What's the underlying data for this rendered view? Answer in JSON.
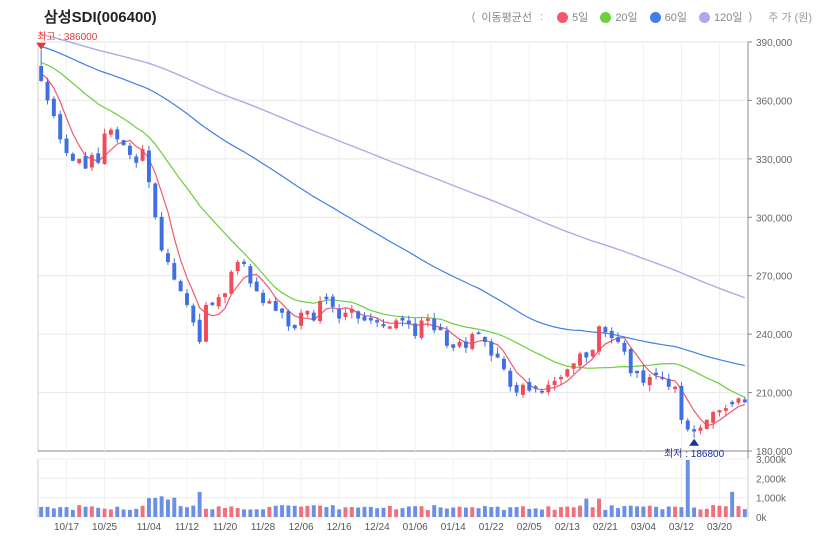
{
  "chart_data": {
    "type": "candlestick",
    "title": "삼성SDI(006400)",
    "legend": {
      "label": "이동평균선",
      "colon": ":",
      "open_paren": "(",
      "close_paren": ")",
      "unit": "주 가 (원)",
      "series": [
        {
          "name": "5일",
          "color": "#f05a6e"
        },
        {
          "name": "20일",
          "color": "#6ccf3b"
        },
        {
          "name": "60일",
          "color": "#3f7fe8"
        },
        {
          "name": "120일",
          "color": "#b0a8e8"
        }
      ]
    },
    "price_axis": {
      "min": 180000,
      "max": 390000,
      "ticks": [
        "390,000",
        "360,000",
        "330,000",
        "300,000",
        "270,000",
        "240,000",
        "210,000",
        "180,000"
      ]
    },
    "volume_axis": {
      "min": 0,
      "max": 3000,
      "ticks": [
        "3,000k",
        "2,000k",
        "1,000k",
        "0k"
      ]
    },
    "x_ticks": [
      {
        "label": "10/17",
        "idx": 4
      },
      {
        "label": "10/25",
        "idx": 10
      },
      {
        "label": "11/04",
        "idx": 17
      },
      {
        "label": "11/12",
        "idx": 23
      },
      {
        "label": "11/20",
        "idx": 29
      },
      {
        "label": "11/28",
        "idx": 35
      },
      {
        "label": "12/06",
        "idx": 41
      },
      {
        "label": "12/16",
        "idx": 47
      },
      {
        "label": "12/24",
        "idx": 53
      },
      {
        "label": "01/06",
        "idx": 59
      },
      {
        "label": "01/14",
        "idx": 65
      },
      {
        "label": "01/22",
        "idx": 71
      },
      {
        "label": "02/05",
        "idx": 77
      },
      {
        "label": "02/13",
        "idx": 83
      },
      {
        "label": "02/21",
        "idx": 89
      },
      {
        "label": "03/04",
        "idx": 95
      },
      {
        "label": "03/12",
        "idx": 101
      },
      {
        "label": "03/20",
        "idx": 107
      }
    ],
    "max_marker": {
      "label": "최고 : 386000",
      "idx": 0,
      "value": 386000
    },
    "min_marker": {
      "label": "최저 : 186800",
      "idx": 103,
      "value": 186800
    },
    "closes": [
      370000,
      360000,
      352000,
      340000,
      333000,
      329000,
      330000,
      325000,
      332000,
      328000,
      343000,
      345000,
      340000,
      337000,
      332000,
      328000,
      335000,
      318000,
      300000,
      283000,
      277000,
      268000,
      262000,
      255000,
      246000,
      236000,
      255000,
      255000,
      259000,
      261000,
      272000,
      277000,
      276000,
      266000,
      262000,
      256000,
      257000,
      252000,
      251000,
      244000,
      243000,
      251000,
      252000,
      247000,
      257000,
      258000,
      254000,
      248000,
      251000,
      253000,
      248000,
      247000,
      247000,
      246000,
      244000,
      244000,
      247000,
      247000,
      245000,
      239000,
      247000,
      248000,
      242000,
      242000,
      234000,
      233000,
      236000,
      233000,
      240000,
      240000,
      236000,
      229000,
      228000,
      222000,
      213000,
      210000,
      214000,
      211000,
      212000,
      210000,
      214000,
      216000,
      218000,
      222000,
      225000,
      230000,
      228000,
      232000,
      244000,
      241000,
      238000,
      236000,
      231000,
      220000,
      220000,
      215000,
      218000,
      219000,
      217000,
      213000,
      213000,
      196000,
      191000,
      190000,
      192000,
      196000,
      200000,
      201000,
      202000,
      204000,
      207000,
      205000
    ]
  }
}
